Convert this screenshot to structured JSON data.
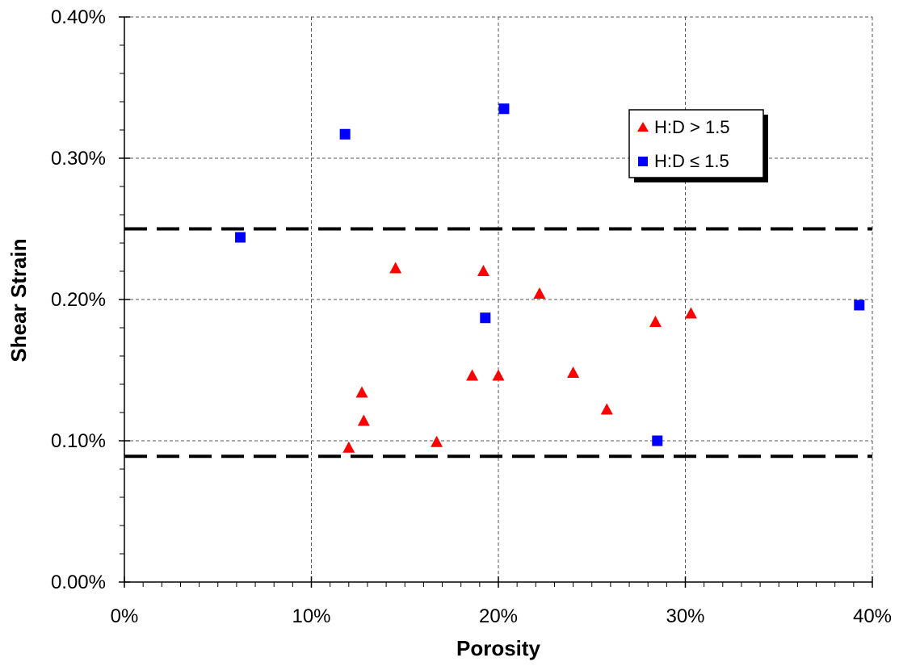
{
  "chart_data": {
    "type": "scatter",
    "title": "",
    "xlabel": "Porosity",
    "ylabel": "Shear Strain",
    "xlim": [
      0,
      40
    ],
    "ylim": [
      0,
      0.4
    ],
    "x_ticks": [
      0,
      10,
      20,
      30,
      40
    ],
    "x_tick_labels": [
      "0%",
      "10%",
      "20%",
      "30%",
      "40%"
    ],
    "y_ticks": [
      0,
      0.1,
      0.2,
      0.3,
      0.4
    ],
    "y_tick_labels": [
      "0.00%",
      "0.10%",
      "0.20%",
      "0.30%",
      "0.40%"
    ],
    "x_minor_step": 1,
    "y_minor_step": 0.02,
    "grid": "major-dashed",
    "legend_position": "upper-right",
    "series": [
      {
        "name": "H:D > 1.5",
        "marker": "triangle",
        "color": "#ff0000",
        "points": [
          [
            12.0,
            0.095
          ],
          [
            12.7,
            0.134
          ],
          [
            12.8,
            0.114
          ],
          [
            14.5,
            0.222
          ],
          [
            16.7,
            0.099
          ],
          [
            18.6,
            0.146
          ],
          [
            19.2,
            0.22
          ],
          [
            20.0,
            0.146
          ],
          [
            22.2,
            0.204
          ],
          [
            24.0,
            0.148
          ],
          [
            25.8,
            0.122
          ],
          [
            28.4,
            0.184
          ],
          [
            30.3,
            0.19
          ]
        ]
      },
      {
        "name": "H:D ≤ 1.5",
        "marker": "square",
        "color": "#0000ff",
        "points": [
          [
            6.2,
            0.244
          ],
          [
            11.8,
            0.317
          ],
          [
            19.3,
            0.187
          ],
          [
            20.3,
            0.335
          ],
          [
            28.5,
            0.1
          ],
          [
            39.3,
            0.196
          ]
        ]
      }
    ],
    "reference_lines": [
      {
        "y": 0.25,
        "style": "long-dash",
        "color": "#000000"
      },
      {
        "y": 0.089,
        "style": "long-dash",
        "color": "#000000"
      }
    ]
  }
}
